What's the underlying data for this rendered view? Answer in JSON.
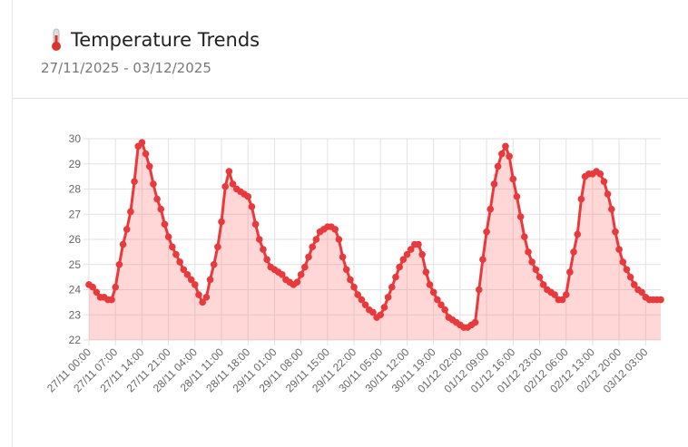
{
  "chart_data": {
    "type": "line",
    "title": "Temperature Trends",
    "subtitle": "27/11/2025 - 03/12/2025",
    "categories": [
      "27/11 00:00",
      null,
      null,
      null,
      null,
      null,
      null,
      "27/11 07:00",
      null,
      null,
      null,
      null,
      null,
      null,
      "27/11 14:00",
      null,
      null,
      null,
      null,
      null,
      null,
      "27/11 21:00",
      null,
      null,
      null,
      null,
      null,
      null,
      "28/11 04:00",
      null,
      null,
      null,
      null,
      null,
      null,
      "28/11 11:00",
      null,
      null,
      null,
      null,
      null,
      null,
      "28/11 18:00",
      null,
      null,
      null,
      null,
      null,
      null,
      "29/11 01:00",
      null,
      null,
      null,
      null,
      null,
      null,
      "29/11 08:00",
      null,
      null,
      null,
      null,
      null,
      null,
      "29/11 15:00",
      null,
      null,
      null,
      null,
      null,
      null,
      "29/11 22:00",
      null,
      null,
      null,
      null,
      null,
      null,
      "30/11 05:00",
      null,
      null,
      null,
      null,
      null,
      null,
      "30/11 12:00",
      null,
      null,
      null,
      null,
      null,
      null,
      "30/11 19:00",
      null,
      null,
      null,
      null,
      null,
      null,
      "01/12 02:00",
      null,
      null,
      null,
      null,
      null,
      null,
      "01/12 09:00",
      null,
      null,
      null,
      null,
      null,
      null,
      "01/12 16:00",
      null,
      null,
      null,
      null,
      null,
      null,
      "01/12 23:00",
      null,
      null,
      null,
      null,
      null,
      null,
      "02/12 06:00",
      null,
      null,
      null,
      null,
      null,
      null,
      "02/12 13:00",
      null,
      null,
      null,
      null,
      null,
      null,
      "02/12 20:00",
      null,
      null,
      null,
      null,
      null,
      null,
      "03/12 03:00",
      null,
      null,
      null,
      null
    ],
    "series": [
      {
        "color": "#e8393c",
        "fill": "rgba(255,110,110,0.28)",
        "values": [
          24.2,
          24.1,
          23.9,
          23.7,
          23.7,
          23.6,
          23.6,
          24.1,
          25.0,
          25.8,
          26.4,
          27.1,
          28.3,
          29.7,
          29.85,
          29.4,
          28.9,
          28.2,
          27.6,
          27.2,
          26.6,
          26.1,
          25.7,
          25.4,
          25.1,
          24.8,
          24.6,
          24.4,
          24.2,
          23.8,
          23.5,
          23.7,
          24.4,
          25.0,
          25.7,
          26.7,
          28.1,
          28.7,
          28.2,
          28.0,
          27.9,
          27.8,
          27.7,
          27.3,
          26.6,
          26.0,
          25.6,
          25.2,
          24.9,
          24.8,
          24.7,
          24.6,
          24.4,
          24.3,
          24.2,
          24.3,
          24.6,
          24.9,
          25.3,
          25.7,
          26.0,
          26.3,
          26.4,
          26.5,
          26.5,
          26.4,
          26.0,
          25.3,
          24.8,
          24.4,
          24.1,
          23.8,
          23.6,
          23.4,
          23.2,
          23.1,
          22.9,
          23.0,
          23.3,
          23.7,
          24.1,
          24.5,
          24.9,
          25.2,
          25.4,
          25.6,
          25.8,
          25.8,
          25.4,
          24.7,
          24.2,
          23.9,
          23.6,
          23.4,
          23.2,
          22.9,
          22.8,
          22.7,
          22.6,
          22.5,
          22.5,
          22.6,
          22.7,
          24.0,
          25.2,
          26.3,
          27.2,
          28.2,
          28.9,
          29.4,
          29.7,
          29.3,
          28.4,
          27.7,
          26.9,
          26.1,
          25.5,
          25.1,
          24.8,
          24.5,
          24.2,
          24.0,
          23.9,
          23.8,
          23.6,
          23.6,
          23.8,
          24.7,
          25.5,
          26.2,
          27.6,
          28.5,
          28.6,
          28.6,
          28.7,
          28.6,
          28.3,
          27.8,
          27.2,
          26.3,
          25.6,
          25.1,
          24.8,
          24.5,
          24.2,
          24.0,
          23.9,
          23.7,
          23.6,
          23.6,
          23.6,
          23.6
        ]
      }
    ],
    "ylim": [
      22,
      30
    ],
    "yticks": [
      22,
      23,
      24,
      25,
      26,
      27,
      28,
      29,
      30
    ],
    "grid": true
  }
}
